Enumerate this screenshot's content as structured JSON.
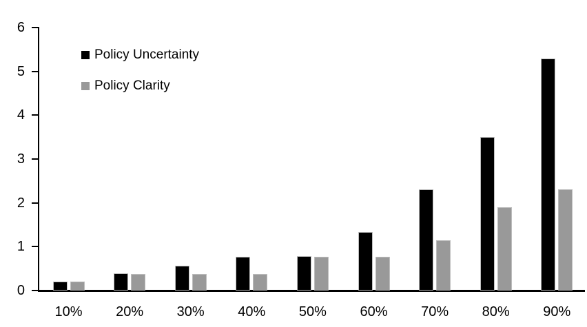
{
  "chart_data": {
    "type": "bar",
    "title": "",
    "xlabel": "",
    "ylabel": "",
    "categories": [
      "10%",
      "20%",
      "30%",
      "40%",
      "50%",
      "60%",
      "70%",
      "80%",
      "90%"
    ],
    "series": [
      {
        "name": "Policy Uncertainty",
        "color": "#000000",
        "values": [
          0.2,
          0.4,
          0.57,
          0.77,
          0.79,
          1.33,
          2.31,
          3.5,
          5.3
        ]
      },
      {
        "name": "Policy Clarity",
        "color": "#999999",
        "values": [
          0.2,
          0.38,
          0.38,
          0.38,
          0.77,
          0.77,
          1.14,
          1.9,
          2.31
        ]
      }
    ],
    "ylim": [
      0,
      6
    ],
    "yticks": [
      0,
      1,
      2,
      3,
      4,
      5,
      6
    ],
    "grid": false,
    "legend_position": "top-left"
  },
  "colors": {
    "background": "#ffffff",
    "axis": "#000000",
    "bar_border": "#bdbdbd",
    "uncertainty_bar": "#000000",
    "clarity_bar": "#999999"
  }
}
